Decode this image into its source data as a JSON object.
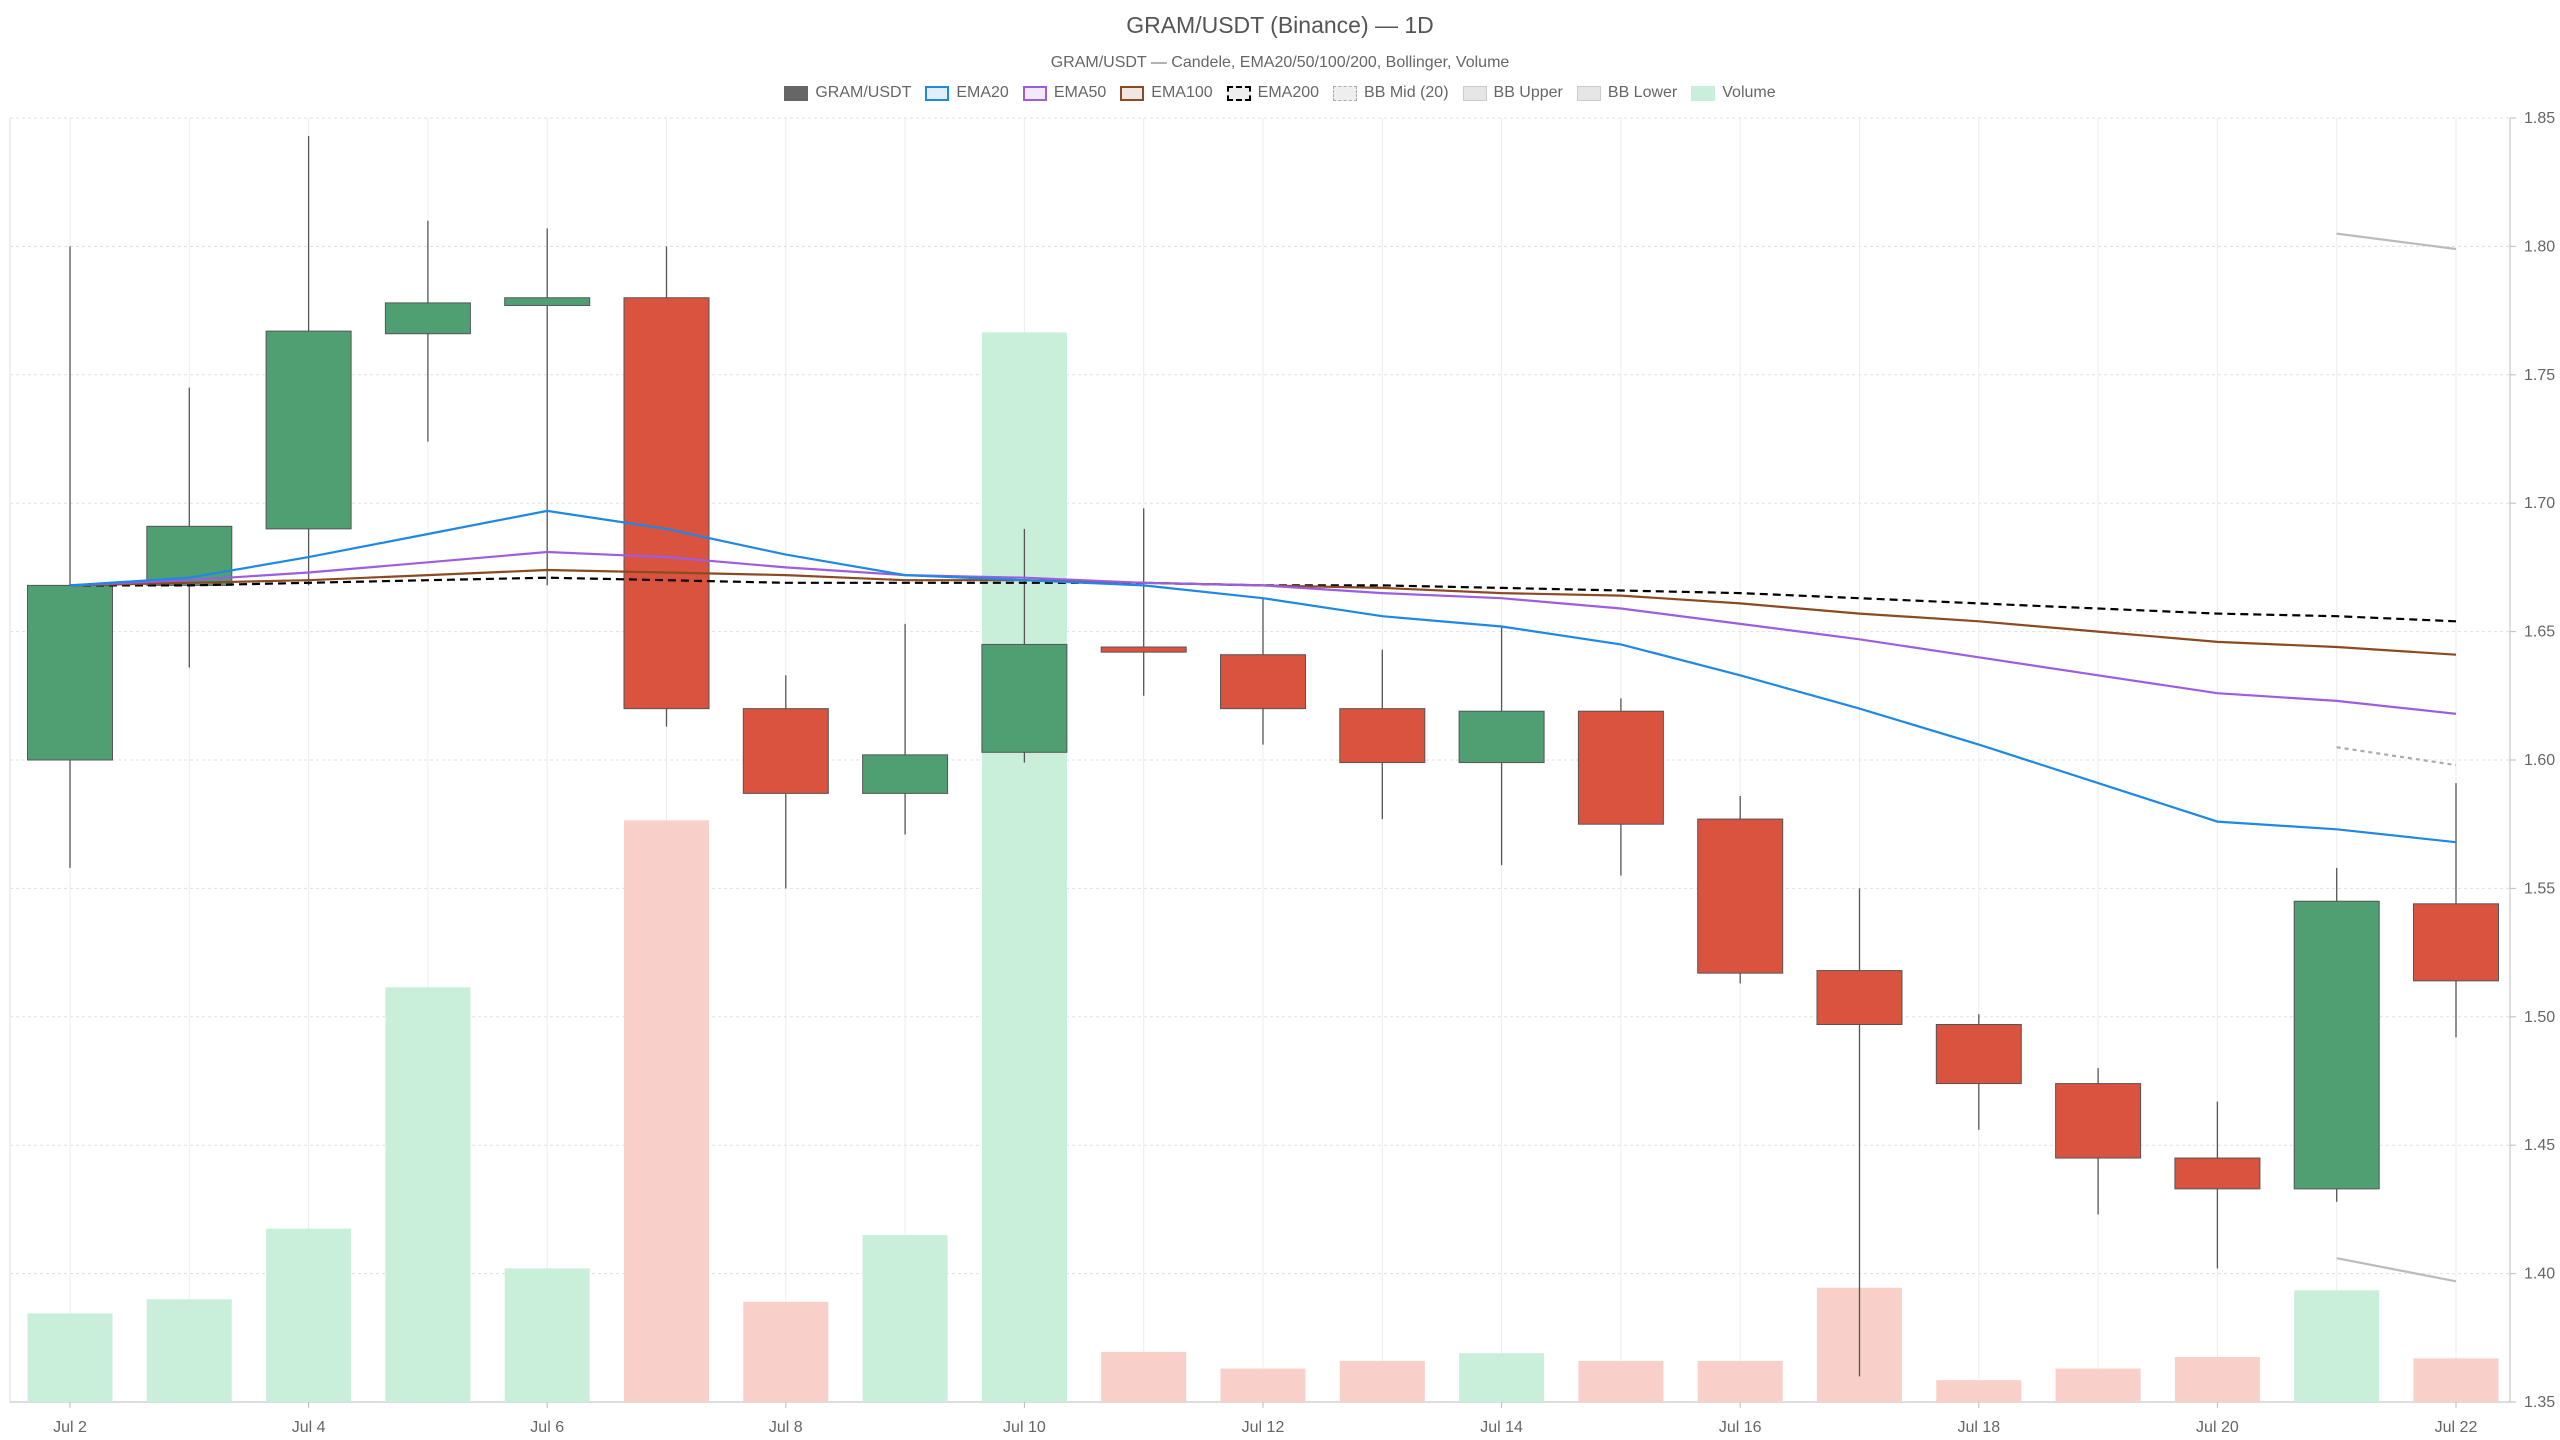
{
  "chart_data": {
    "type": "candlestick",
    "title": "GRAM/USDT (Binance) — 1D",
    "subtitle": "GRAM/USDT — Candele, EMA20/50/100/200, Bollinger, Volume",
    "legend": [
      {
        "label": "GRAM/USDT",
        "kind": "candle",
        "color": "#666666"
      },
      {
        "label": "EMA20",
        "kind": "line",
        "color": "#1e88e5"
      },
      {
        "label": "EMA50",
        "kind": "line",
        "color": "#9c5de0"
      },
      {
        "label": "EMA100",
        "kind": "line",
        "color": "#8b4a22"
      },
      {
        "label": "EMA200",
        "kind": "dashed",
        "color": "#000000"
      },
      {
        "label": "BB Mid (20)",
        "kind": "dotted",
        "color": "#aaaaaa"
      },
      {
        "label": "BB Upper",
        "kind": "band",
        "color": "#bbbbbb"
      },
      {
        "label": "BB Lower",
        "kind": "band",
        "color": "#bbbbbb"
      },
      {
        "label": "Volume",
        "kind": "volume",
        "color": "#a8e6c4"
      }
    ],
    "legend_position": "top-center",
    "colors": {
      "up": "#4f9f72",
      "down": "#d9533f",
      "vol_up": "#c9efdb",
      "vol_down": "#f8cfc9"
    },
    "grid": true,
    "ylim": [
      1.35,
      1.85
    ],
    "y_ticks": [
      "1.35",
      "1.40",
      "1.45",
      "1.50",
      "1.55",
      "1.60",
      "1.65",
      "1.70",
      "1.75",
      "1.80",
      "1.85"
    ],
    "x_tick_labels": [
      "Jul 2",
      "Jul 4",
      "Jul 6",
      "Jul 8",
      "Jul 10",
      "Jul 12",
      "Jul 14",
      "Jul 16",
      "Jul 18",
      "Jul 20",
      "Jul 22"
    ],
    "dates": [
      "Jul 2",
      "Jul 3",
      "Jul 4",
      "Jul 5",
      "Jul 6",
      "Jul 7",
      "Jul 8",
      "Jul 9",
      "Jul 10",
      "Jul 11",
      "Jul 12",
      "Jul 13",
      "Jul 14",
      "Jul 15",
      "Jul 16",
      "Jul 17",
      "Jul 18",
      "Jul 19",
      "Jul 20",
      "Jul 21",
      "Jul 22"
    ],
    "candles": [
      {
        "o": 1.6,
        "h": 1.8,
        "l": 1.558,
        "c": 1.668
      },
      {
        "o": 1.668,
        "h": 1.745,
        "l": 1.636,
        "c": 1.691
      },
      {
        "o": 1.69,
        "h": 1.843,
        "l": 1.668,
        "c": 1.767
      },
      {
        "o": 1.766,
        "h": 1.81,
        "l": 1.724,
        "c": 1.778
      },
      {
        "o": 1.777,
        "h": 1.807,
        "l": 1.668,
        "c": 1.78
      },
      {
        "o": 1.78,
        "h": 1.8,
        "l": 1.613,
        "c": 1.62
      },
      {
        "o": 1.62,
        "h": 1.633,
        "l": 1.55,
        "c": 1.587
      },
      {
        "o": 1.587,
        "h": 1.653,
        "l": 1.571,
        "c": 1.602
      },
      {
        "o": 1.603,
        "h": 1.69,
        "l": 1.599,
        "c": 1.645
      },
      {
        "o": 1.644,
        "h": 1.698,
        "l": 1.625,
        "c": 1.642
      },
      {
        "o": 1.641,
        "h": 1.663,
        "l": 1.606,
        "c": 1.62
      },
      {
        "o": 1.62,
        "h": 1.643,
        "l": 1.577,
        "c": 1.599
      },
      {
        "o": 1.599,
        "h": 1.652,
        "l": 1.559,
        "c": 1.619
      },
      {
        "o": 1.619,
        "h": 1.624,
        "l": 1.555,
        "c": 1.575
      },
      {
        "o": 1.577,
        "h": 1.586,
        "l": 1.513,
        "c": 1.517
      },
      {
        "o": 1.518,
        "h": 1.55,
        "l": 1.36,
        "c": 1.497
      },
      {
        "o": 1.497,
        "h": 1.501,
        "l": 1.456,
        "c": 1.474
      },
      {
        "o": 1.474,
        "h": 1.48,
        "l": 1.423,
        "c": 1.445
      },
      {
        "o": 1.445,
        "h": 1.467,
        "l": 1.402,
        "c": 1.433
      },
      {
        "o": 1.433,
        "h": 1.558,
        "l": 1.428,
        "c": 1.545
      },
      {
        "o": 1.544,
        "h": 1.591,
        "l": 1.492,
        "c": 1.514
      }
    ],
    "volume_relative": [
      0.069,
      0.08,
      0.135,
      0.323,
      0.104,
      0.453,
      0.078,
      0.13,
      0.833,
      0.039,
      0.026,
      0.032,
      0.038,
      0.032,
      0.032,
      0.089,
      0.017,
      0.026,
      0.035,
      0.087,
      0.034
    ],
    "ema20": [
      1.668,
      1.671,
      1.679,
      1.688,
      1.697,
      1.69,
      1.68,
      1.672,
      1.67,
      1.668,
      1.663,
      1.656,
      1.652,
      1.645,
      1.633,
      1.62,
      1.606,
      1.591,
      1.576,
      1.573,
      1.568
    ],
    "ema50": [
      1.668,
      1.67,
      1.673,
      1.677,
      1.681,
      1.679,
      1.675,
      1.672,
      1.671,
      1.669,
      1.668,
      1.665,
      1.663,
      1.659,
      1.653,
      1.647,
      1.64,
      1.633,
      1.626,
      1.623,
      1.618
    ],
    "ema100": [
      1.668,
      1.669,
      1.67,
      1.672,
      1.674,
      1.673,
      1.672,
      1.67,
      1.67,
      1.669,
      1.668,
      1.667,
      1.665,
      1.664,
      1.661,
      1.657,
      1.654,
      1.65,
      1.646,
      1.644,
      1.641
    ],
    "ema200": [
      1.668,
      1.668,
      1.669,
      1.67,
      1.671,
      1.67,
      1.669,
      1.669,
      1.669,
      1.669,
      1.668,
      1.668,
      1.667,
      1.666,
      1.665,
      1.663,
      1.661,
      1.659,
      1.657,
      1.656,
      1.654
    ],
    "bb_start_index": 19,
    "bb_upper": [
      1.805,
      1.799
    ],
    "bb_mid": [
      1.605,
      1.598
    ],
    "bb_lower": [
      1.406,
      1.397
    ]
  }
}
